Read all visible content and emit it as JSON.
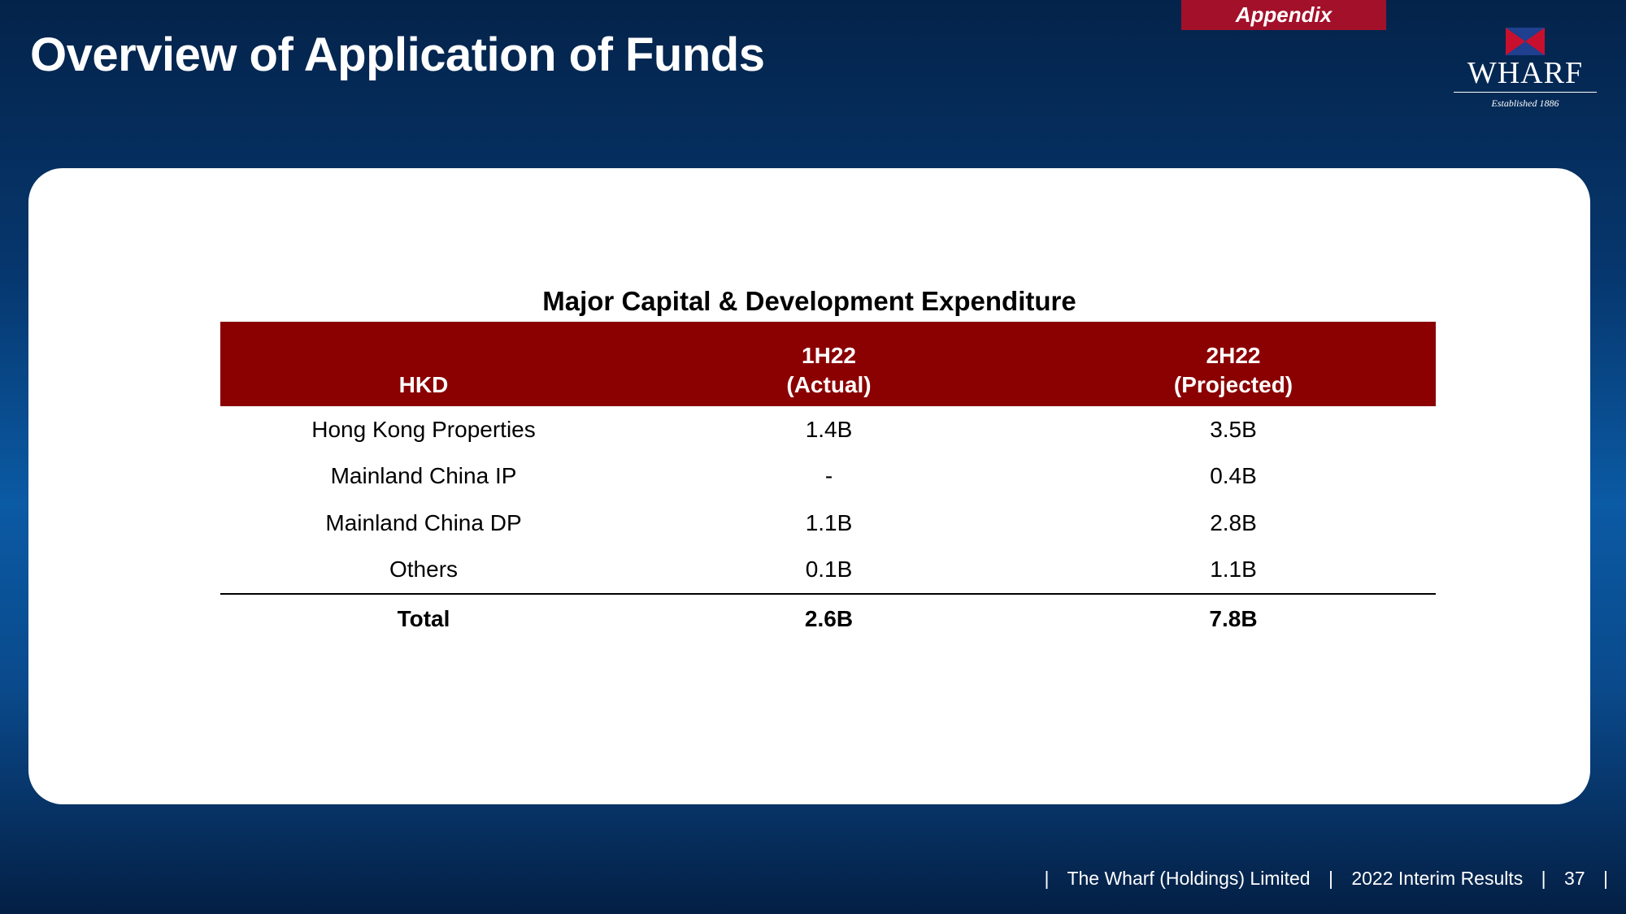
{
  "header": {
    "section_tab": "Appendix",
    "title": "Overview of Application of Funds"
  },
  "logo": {
    "name": "WHARF",
    "tagline": "Established 1886",
    "colors": {
      "red": "#c8102e",
      "blue": "#1f3f8f"
    }
  },
  "table": {
    "title": "Major Capital & Development Expenditure",
    "columns": [
      {
        "line1": "",
        "line2": "HKD"
      },
      {
        "line1": "1H22",
        "line2": "(Actual)"
      },
      {
        "line1": "2H22",
        "line2": "(Projected)"
      }
    ],
    "rows": [
      {
        "label": "Hong Kong Properties",
        "h1": "1.4B",
        "h2": "3.5B"
      },
      {
        "label": "Mainland China IP",
        "h1": "-",
        "h2": "0.4B"
      },
      {
        "label": "Mainland China DP",
        "h1": "1.1B",
        "h2": "2.8B"
      },
      {
        "label": "Others",
        "h1": "0.1B",
        "h2": "1.1B"
      }
    ],
    "total": {
      "label": "Total",
      "h1": "2.6B",
      "h2": "7.8B"
    }
  },
  "footer": {
    "company": "The Wharf (Holdings) Limited",
    "report": "2022 Interim Results",
    "page_number": "37"
  },
  "colors": {
    "header_red": "#8b0000",
    "tab_red": "#a3102a",
    "background_navy": "#06376e"
  }
}
